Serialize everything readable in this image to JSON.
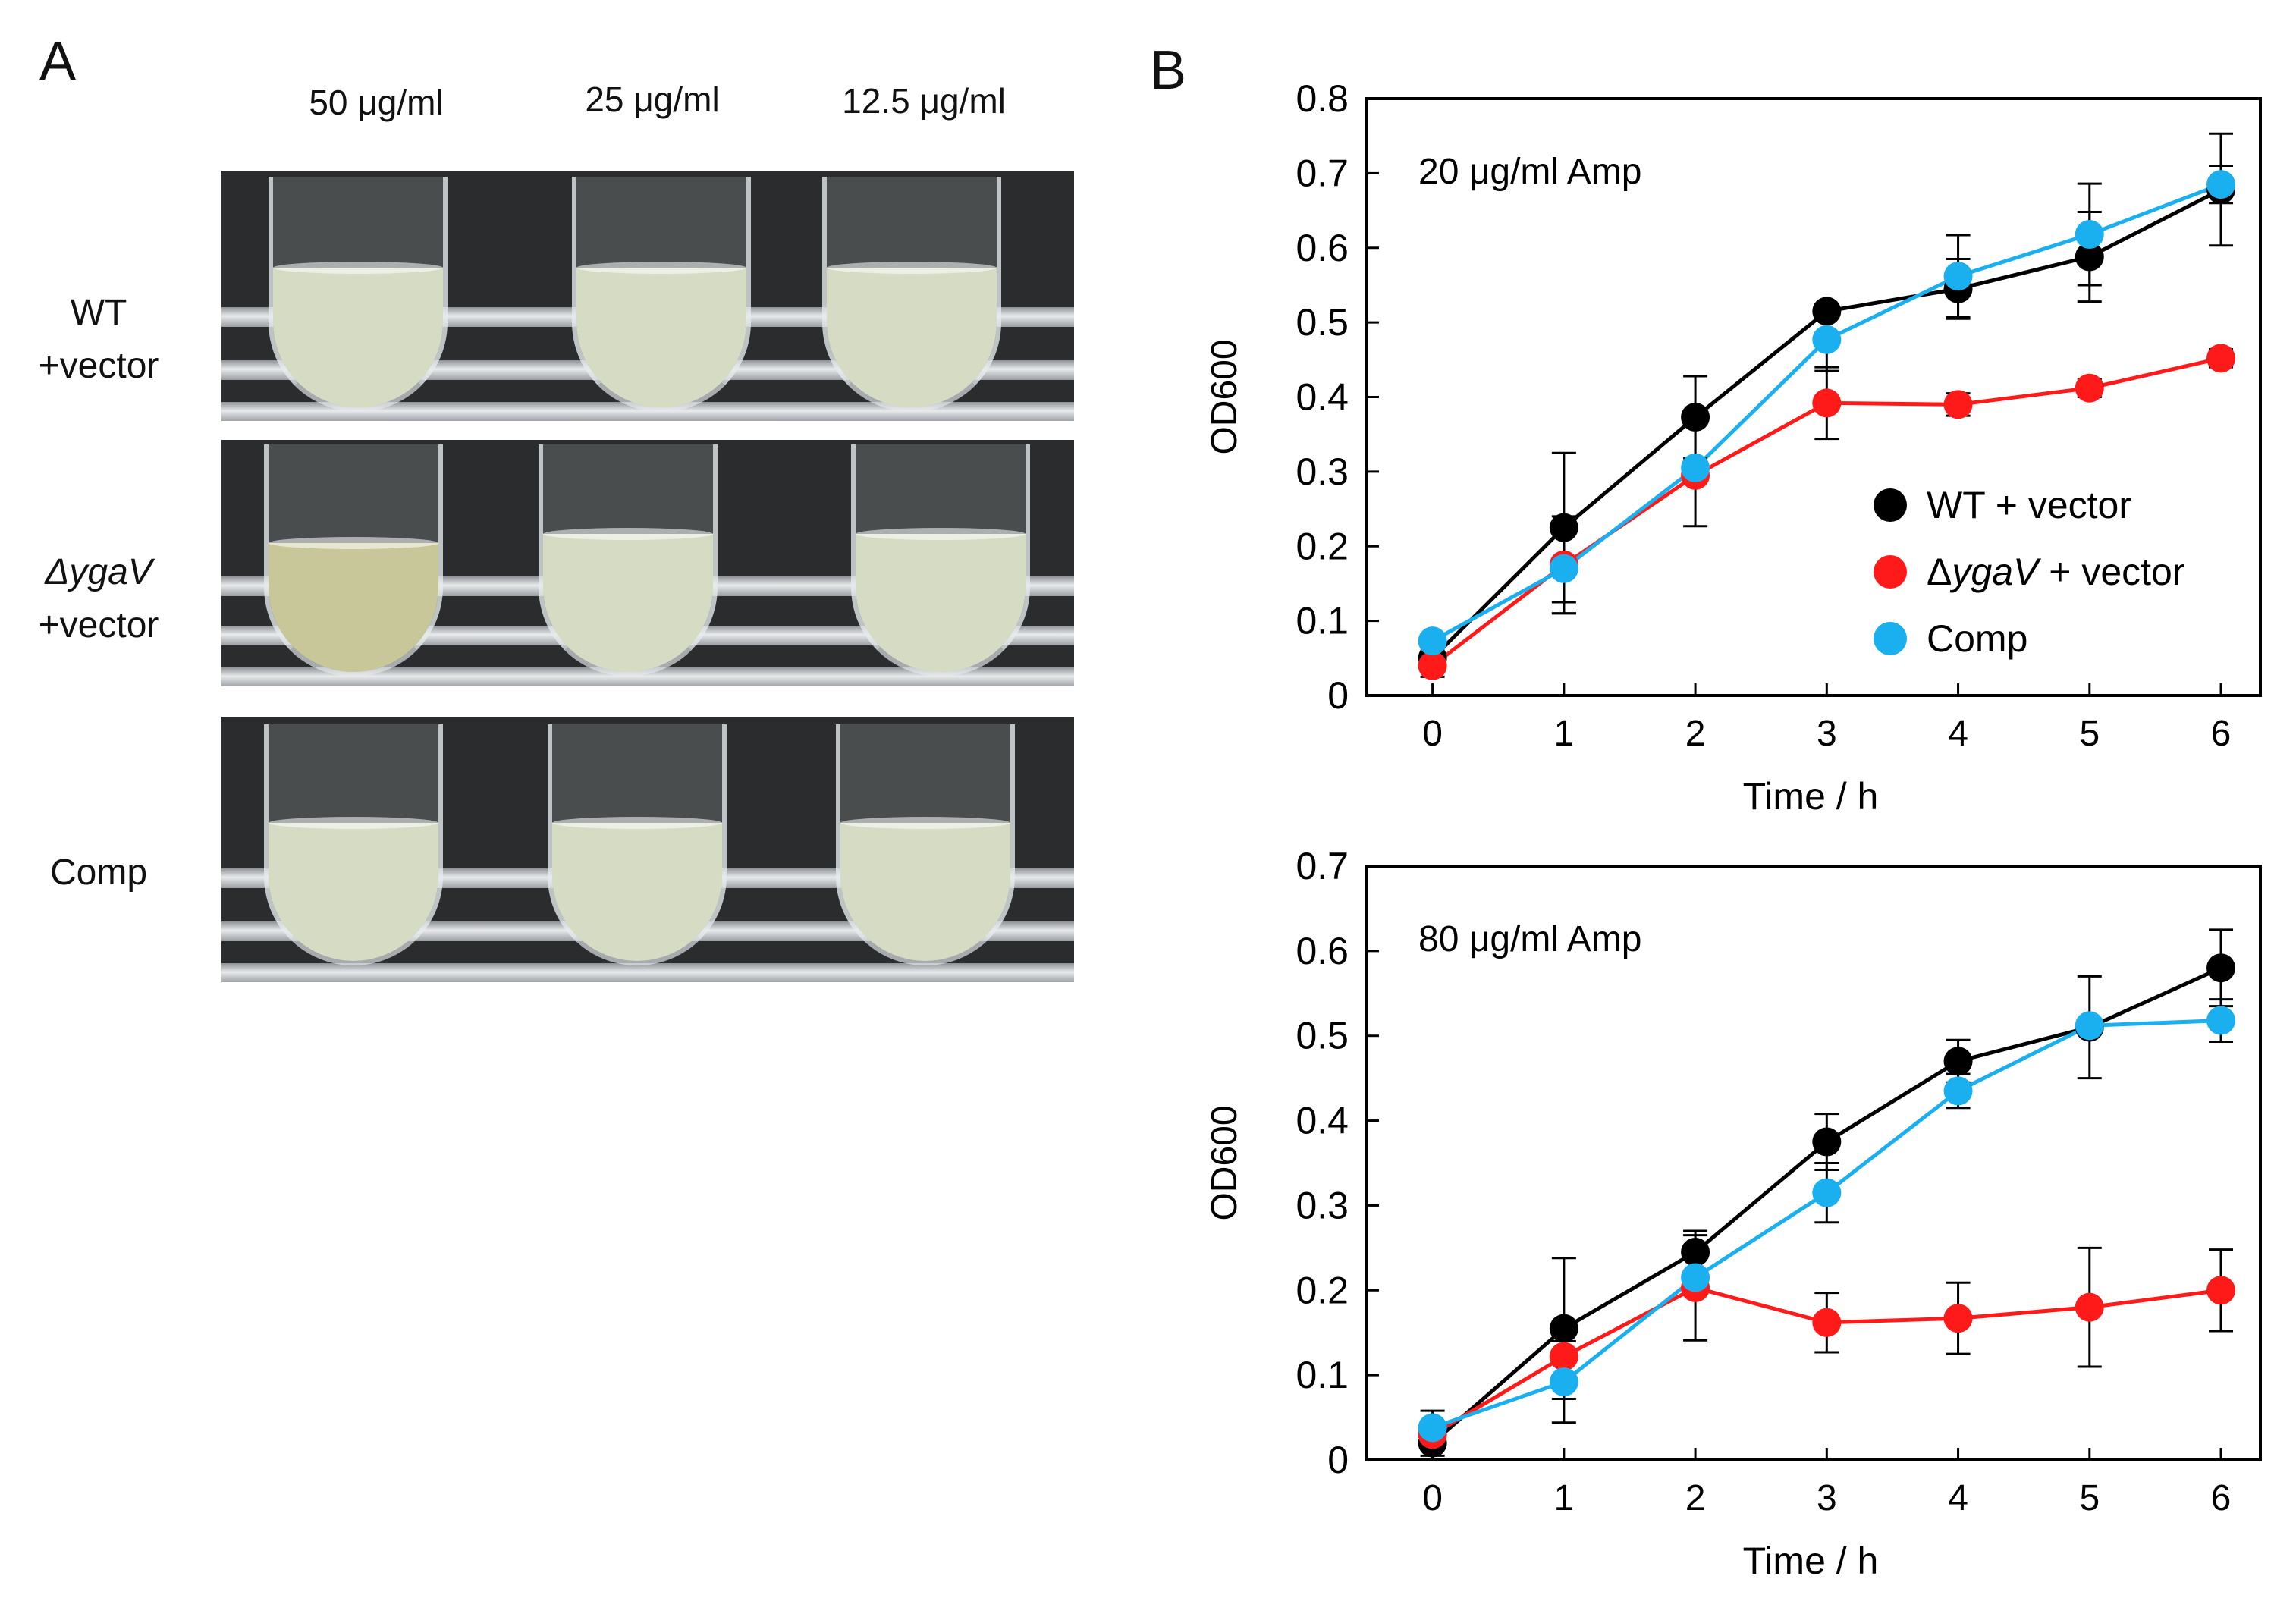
{
  "panel_a": {
    "letter": "A",
    "concentrations": [
      "50 μg/ml",
      "25 μg/ml",
      "12.5 μg/ml"
    ],
    "rows": [
      {
        "line1": "WT",
        "line2": "+vector",
        "italic": false,
        "clear_first": false
      },
      {
        "line1": "ΔygaV",
        "line2": "+vector",
        "italic": true,
        "clear_first": true
      },
      {
        "line1": "Comp",
        "line2": "",
        "italic": false,
        "clear_first": false
      }
    ],
    "colors": {
      "turbid": "#d6dcc4",
      "clear": "#c8c79a"
    }
  },
  "panel_b": {
    "letter": "B"
  },
  "chart_data": [
    {
      "type": "line",
      "annotation": "20 μg/ml Amp",
      "xlabel": "Time / h",
      "ylabel": "OD600",
      "xlim": [
        -0.5,
        6.3
      ],
      "ylim": [
        0,
        0.8
      ],
      "x_ticks": [
        0,
        1,
        2,
        3,
        4,
        5,
        6
      ],
      "y_ticks": [
        "0",
        "0.1",
        "0.2",
        "0.3",
        "0.4",
        "0.5",
        "0.6",
        "0.7",
        "0.8"
      ],
      "y_tick_values": [
        0,
        0.1,
        0.2,
        0.3,
        0.4,
        0.5,
        0.6,
        0.7,
        0.8
      ],
      "x": [
        0,
        1,
        2,
        3,
        4,
        5,
        6
      ],
      "legend_position": "center-right",
      "series": [
        {
          "name": "WT + vector",
          "color": "#000000",
          "values": [
            0.05,
            0.225,
            0.373,
            0.515,
            0.545,
            0.588,
            0.678
          ],
          "errors": [
            0.01,
            0.1,
            0.055,
            0.0,
            0.04,
            0.06,
            0.075
          ]
        },
        {
          "name": "ΔygaV + vector",
          "color": "#ff1a1a",
          "values": [
            0.04,
            0.175,
            0.295,
            0.392,
            0.39,
            0.412,
            0.452
          ],
          "errors": [
            0.015,
            0.065,
            0.068,
            0.048,
            0.015,
            0.012,
            0.012
          ]
        },
        {
          "name": "Comp",
          "color": "#1ab0f0",
          "values": [
            0.073,
            0.17,
            0.305,
            0.477,
            0.562,
            0.618,
            0.685
          ],
          "errors": [
            0.005,
            0.06,
            0.005,
            0.042,
            0.055,
            0.068,
            0.025
          ]
        }
      ]
    },
    {
      "type": "line",
      "annotation": "80 μg/ml Amp",
      "xlabel": "Time / h",
      "ylabel": "OD600",
      "xlim": [
        -0.5,
        6.3
      ],
      "ylim": [
        0,
        0.7
      ],
      "x_ticks": [
        0,
        1,
        2,
        3,
        4,
        5,
        6
      ],
      "y_ticks": [
        "0",
        "0.1",
        "0.2",
        "0.3",
        "0.4",
        "0.5",
        "0.6",
        "0.7"
      ],
      "y_tick_values": [
        0,
        0.1,
        0.2,
        0.3,
        0.4,
        0.5,
        0.6,
        0.7
      ],
      "x": [
        0,
        1,
        2,
        3,
        4,
        5,
        6
      ],
      "series": [
        {
          "name": "WT + vector",
          "color": "#000000",
          "values": [
            0.02,
            0.155,
            0.245,
            0.375,
            0.47,
            0.51,
            0.58
          ],
          "errors": [
            0.015,
            0.083,
            0.025,
            0.033,
            0.025,
            0.06,
            0.045
          ]
        },
        {
          "name": "ΔygaV + vector",
          "color": "#ff1a1a",
          "values": [
            0.03,
            0.122,
            0.203,
            0.162,
            0.167,
            0.18,
            0.2
          ],
          "errors": [
            0.015,
            0.03,
            0.062,
            0.035,
            0.042,
            0.07,
            0.048
          ]
        },
        {
          "name": "Comp",
          "color": "#1ab0f0",
          "values": [
            0.038,
            0.092,
            0.215,
            0.315,
            0.435,
            0.512,
            0.518
          ],
          "errors": [
            0.02,
            0.048,
            0.005,
            0.035,
            0.02,
            0.005,
            0.025
          ]
        }
      ]
    }
  ]
}
